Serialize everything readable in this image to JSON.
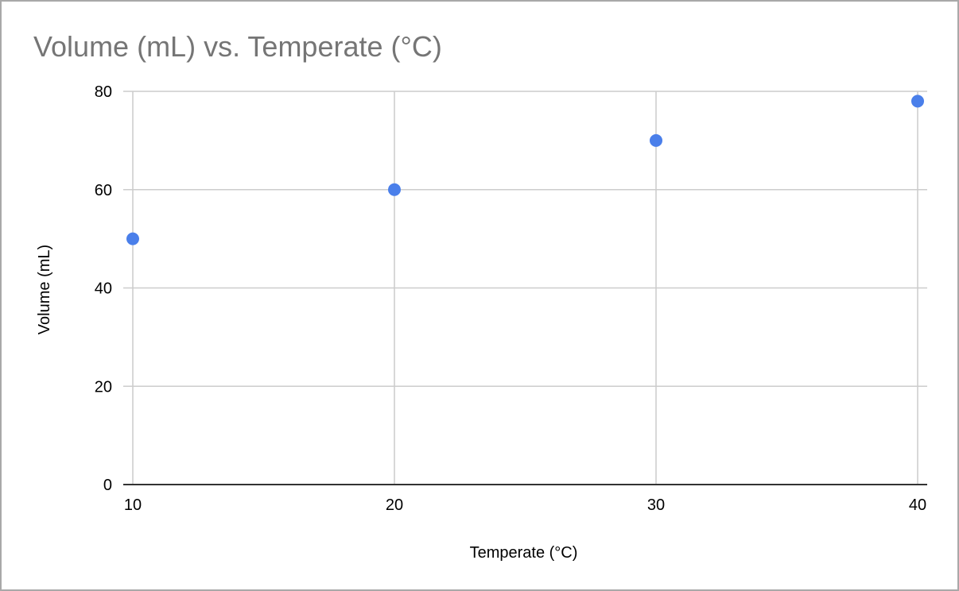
{
  "chart_data": {
    "type": "scatter",
    "title": "Volume (mL) vs. Temperate (°C)",
    "xlabel": "Temperate (°C)",
    "ylabel": "Volume (mL)",
    "xlim": [
      10,
      40
    ],
    "ylim": [
      0,
      80
    ],
    "xticks": [
      "10",
      "20",
      "30",
      "40"
    ],
    "yticks": [
      "0",
      "20",
      "40",
      "60",
      "80"
    ],
    "grid": true,
    "legend": "none",
    "x": [
      10,
      20,
      30,
      40
    ],
    "y": [
      50,
      60,
      70,
      78
    ],
    "series_color": "#4a7fea",
    "grid_color": "#cccccc",
    "axis_color": "#333333"
  }
}
